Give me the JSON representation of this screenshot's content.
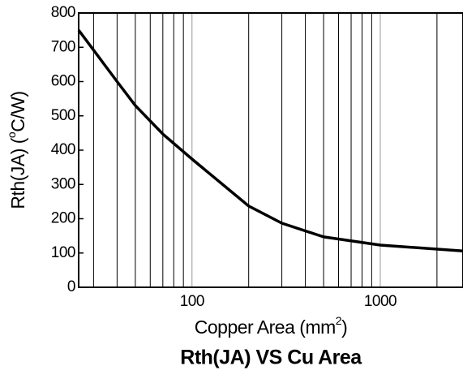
{
  "chart_data": {
    "type": "line",
    "title": "Rth(JA) VS Cu Area",
    "x_label": [
      "Copper Area (mm",
      "2",
      ")"
    ],
    "y_label": [
      "Rth(JA) (",
      "o",
      "C/W)"
    ],
    "xscale": "log",
    "xlim": [
      25,
      2750
    ],
    "ylim": [
      0,
      800
    ],
    "xticks": [
      100,
      1000
    ],
    "xminor": [
      30,
      40,
      50,
      60,
      70,
      80,
      90,
      200,
      300,
      400,
      500,
      600,
      700,
      800,
      900,
      2000
    ],
    "yticks": [
      0,
      100,
      200,
      300,
      400,
      500,
      600,
      700,
      800
    ],
    "series": [
      {
        "name": "Rth(JA)",
        "color": "#000000",
        "x": [
          25,
          40,
          50,
          70,
          100,
          200,
          300,
          500,
          1000,
          2750
        ],
        "values": [
          750,
          600,
          530,
          447,
          374,
          237,
          187,
          147,
          123,
          106
        ]
      }
    ]
  }
}
